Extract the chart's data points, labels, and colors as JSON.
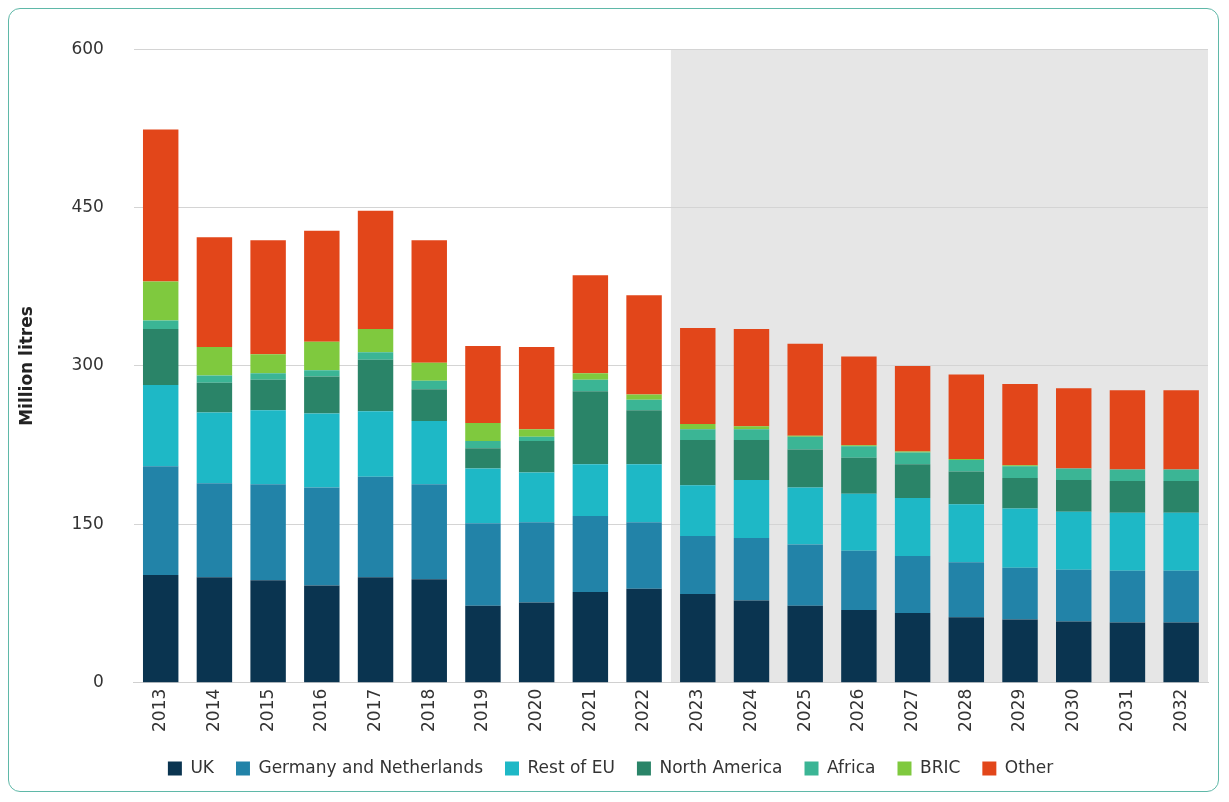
{
  "chart_data": {
    "type": "bar",
    "stacked": true,
    "ylabel": "Million litres",
    "categories": [
      "2013",
      "2014",
      "2015",
      "2016",
      "2017",
      "2018",
      "2019",
      "2020",
      "2021",
      "2022",
      "2023",
      "2024",
      "2025",
      "2026",
      "2027",
      "2028",
      "2029",
      "2030",
      "2031",
      "2032"
    ],
    "series": [
      {
        "name": "UK",
        "color": "#0a3450",
        "values": [
          102,
          100,
          97,
          92,
          100,
          98,
          73,
          76,
          86,
          89,
          84,
          78,
          73,
          69,
          66,
          62,
          60,
          58,
          57,
          57
        ]
      },
      {
        "name": "Germany and Netherlands",
        "color": "#2283a8",
        "values": [
          103,
          89,
          91,
          93,
          95,
          90,
          78,
          76,
          72,
          63,
          55,
          59,
          58,
          56,
          54,
          52,
          49,
          49,
          49,
          49
        ]
      },
      {
        "name": "Rest of EU",
        "color": "#1eb8c6",
        "values": [
          77,
          67,
          70,
          70,
          62,
          60,
          52,
          47,
          49,
          55,
          48,
          55,
          54,
          54,
          55,
          55,
          56,
          55,
          55,
          55
        ]
      },
      {
        "name": "North America",
        "color": "#2a8468",
        "values": [
          53,
          28,
          29,
          35,
          49,
          30,
          19,
          30,
          69,
          51,
          43,
          38,
          36,
          34,
          32,
          31,
          29,
          30,
          30,
          30
        ]
      },
      {
        "name": "Africa",
        "color": "#3bb595",
        "values": [
          8,
          7,
          6,
          6,
          7,
          8,
          7,
          4,
          11,
          10,
          10,
          10,
          12,
          11,
          11,
          11,
          11,
          11,
          11,
          11
        ]
      },
      {
        "name": "BRIC",
        "color": "#7fc93e",
        "values": [
          37,
          27,
          18,
          27,
          22,
          17,
          17,
          7,
          6,
          5,
          5,
          3,
          1,
          1,
          1,
          1,
          1,
          null,
          null,
          null
        ]
      },
      {
        "name": "Other",
        "color": "#e2461a",
        "values": [
          144,
          104,
          108,
          105,
          112,
          116,
          73,
          78,
          93,
          94,
          91,
          92,
          87,
          84,
          81,
          80,
          77,
          76,
          75,
          75
        ]
      }
    ],
    "ylim": [
      0,
      600
    ],
    "yticks": [
      0,
      150,
      300,
      450,
      600
    ],
    "grid": "y",
    "legend": "bottom",
    "bands": [
      {
        "axis": "x",
        "from": "2023",
        "to": "2032",
        "color": "#e6e6e6"
      }
    ]
  }
}
